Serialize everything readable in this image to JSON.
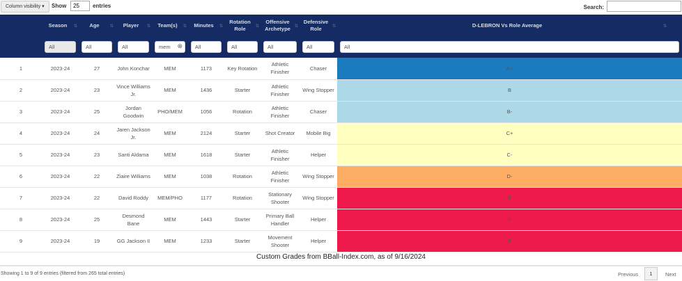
{
  "toolbar": {
    "column_visibility": "Column visibility",
    "show_label": "Show",
    "page_length": "25",
    "entries_label": "entries",
    "search_label": "Search:",
    "search_value": ""
  },
  "headers": [
    "",
    "Season",
    "Age",
    "Player",
    "Team(s)",
    "Minutes",
    "Rotation Role",
    "Offensive Archetype",
    "Defensive Role",
    "D-LEBRON Vs Role Average"
  ],
  "filters": [
    "All",
    "All",
    "All",
    "mem",
    "All",
    "All",
    "All",
    "All",
    "All"
  ],
  "grade_colors": {
    "A+": "#1b7bbf",
    "B": "#acd8e8",
    "B-": "#acd8e8",
    "C+": "#ffffc2",
    "C-": "#ffffc2",
    "D-": "#fcad63",
    "F": "#ee1a4c"
  },
  "rows": [
    [
      "1",
      "2023-24",
      "27",
      "John Konchar",
      "MEM",
      "1173",
      "Key Rotation",
      "Athletic Finisher",
      "Chaser",
      "A+"
    ],
    [
      "2",
      "2023-24",
      "23",
      "Vince Williams Jr.",
      "MEM",
      "1436",
      "Starter",
      "Athletic Finisher",
      "Wing Stopper",
      "B"
    ],
    [
      "3",
      "2023-24",
      "25",
      "Jordan Goodwin",
      "PHO/MEM",
      "1056",
      "Rotation",
      "Athletic Finisher",
      "Chaser",
      "B-"
    ],
    [
      "4",
      "2023-24",
      "24",
      "Jaren Jackson Jr.",
      "MEM",
      "2124",
      "Starter",
      "Shot Creator",
      "Mobile Big",
      "C+"
    ],
    [
      "5",
      "2023-24",
      "23",
      "Santi Aldama",
      "MEM",
      "1618",
      "Starter",
      "Athletic Finisher",
      "Helper",
      "C-"
    ],
    [
      "6",
      "2023-24",
      "22",
      "Ziaire Williams",
      "MEM",
      "1038",
      "Rotation",
      "Athletic Finisher",
      "Wing Stopper",
      "D-"
    ],
    [
      "7",
      "2023-24",
      "22",
      "David Roddy",
      "MEM/PHO",
      "1177",
      "Rotation",
      "Stationary Shooter",
      "Wing Stopper",
      "F"
    ],
    [
      "8",
      "2023-24",
      "25",
      "Desmond Bane",
      "MEM",
      "1443",
      "Starter",
      "Primary Ball Handler",
      "Helper",
      "F"
    ],
    [
      "9",
      "2023-24",
      "19",
      "GG Jackson II",
      "MEM",
      "1233",
      "Starter",
      "Movement Shooter",
      "Helper",
      "F"
    ]
  ],
  "caption": "Custom Grades from BBall-Index.com, as of 9/16/2024",
  "footer": {
    "info": "Showing 1 to 9 of 9 entries (filtered from 265 total entries)",
    "previous": "Previous",
    "page": "1",
    "next": "Next"
  }
}
